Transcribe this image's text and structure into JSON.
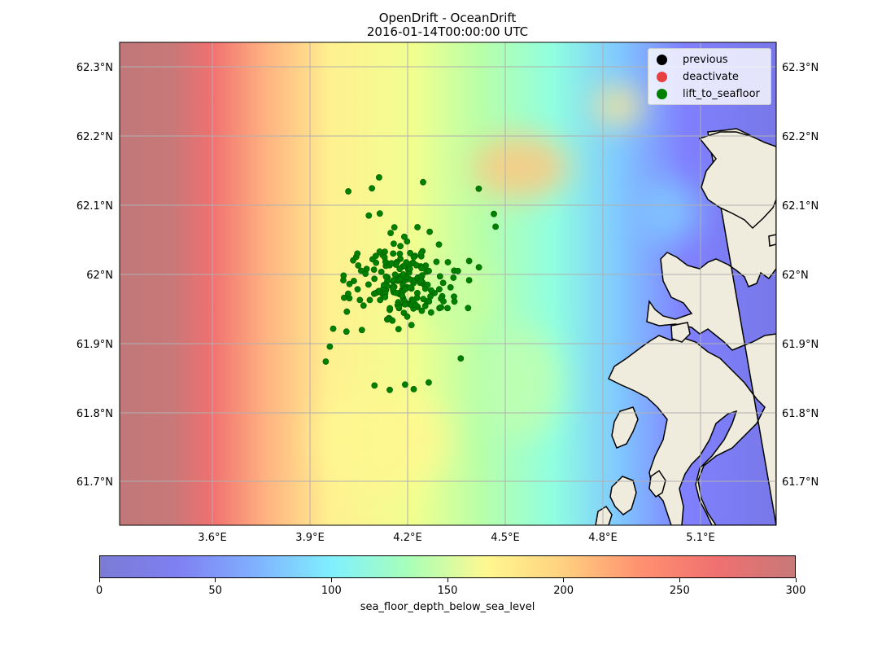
{
  "title": {
    "line1": "OpenDrift - OceanDrift",
    "line2": "2016-01-14T00:00:00 UTC"
  },
  "axes": {
    "x_ticks": [
      "3.6°E",
      "3.9°E",
      "4.2°E",
      "4.5°E",
      "4.8°E",
      "5.1°E"
    ],
    "y_ticks": [
      "62.3°N",
      "62.2°N",
      "62.1°N",
      "62°N",
      "61.9°N",
      "61.8°N",
      "61.7°N"
    ]
  },
  "legend": {
    "items": [
      {
        "label": "previous",
        "color": "#000000"
      },
      {
        "label": "deactivate",
        "color": "#e84040"
      },
      {
        "label": "lift_to_seafloor",
        "color": "#008000"
      }
    ]
  },
  "colorbar": {
    "label": "sea_floor_depth_below_sea_level",
    "ticks": [
      "0",
      "50",
      "100",
      "150",
      "200",
      "250",
      "300"
    ],
    "colors": [
      "#7b7bd6",
      "#7f7ff2",
      "#80b0ff",
      "#80f0ff",
      "#a8ffb8",
      "#fff890",
      "#ffd080",
      "#ff9070",
      "#f07070",
      "#c87878"
    ]
  },
  "colors": {
    "land": "#efecdd",
    "particle": "#008000",
    "grid": "#b0b0b0"
  }
}
